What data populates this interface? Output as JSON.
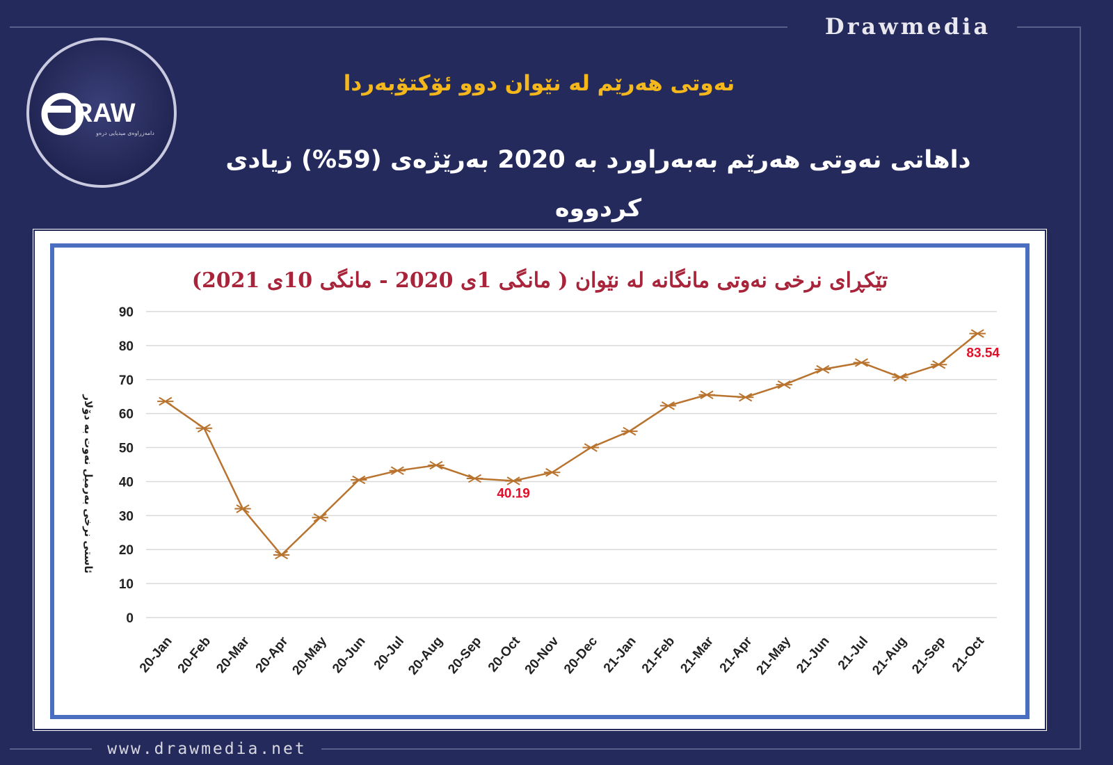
{
  "brand": {
    "top_label": "Drawmedia",
    "website": "www.drawmedia.net",
    "logo_text": "RAW",
    "logo_tagline": "دامەزراوەی میدیایی درەو"
  },
  "headline": {
    "line1": "نەوتی هەرێم لە نێوان دوو ئۆکتۆبەردا",
    "line2": "داهاتی نەوتی هەرێم بەبەراورد بە 2020 بەرێژەی (59%) زیادی کردووە"
  },
  "colors": {
    "background": "#252a5c",
    "headline_accent": "#f5b81c",
    "chart_line": "#b8732e",
    "chart_title": "#a8243a",
    "data_label": "#e0102a",
    "chart_border": "#4a6fc1"
  },
  "chart_data": {
    "type": "line",
    "title": "تێکڕای نرخی نەوتی مانگانە لە نێوان ( مانگی 1ی 2020 - مانگی 10ی 2021)",
    "ylabel": "ئاستی نرخی بەرمیل نەوت بە دۆلار",
    "xlabel": "",
    "ylim": [
      0,
      90
    ],
    "yticks": [
      "0",
      "10",
      "20",
      "30",
      "40",
      "50",
      "60",
      "70",
      "80",
      "90"
    ],
    "grid": true,
    "marker": "asterisk",
    "categories": [
      "20-Jan",
      "20-Feb",
      "20-Mar",
      "20-Apr",
      "20-May",
      "20-Jun",
      "20-Jul",
      "20-Aug",
      "20-Sep",
      "20-Oct",
      "20-Nov",
      "20-Dec",
      "21-Jan",
      "21-Feb",
      "21-Mar",
      "21-Apr",
      "21-May",
      "21-Jun",
      "21-Jul",
      "21-Aug",
      "21-Sep",
      "21-Oct"
    ],
    "values": [
      63.6,
      55.7,
      32.0,
      18.4,
      29.4,
      40.5,
      43.2,
      44.8,
      40.9,
      40.19,
      42.7,
      50.0,
      54.8,
      62.3,
      65.5,
      64.8,
      68.5,
      73.0,
      75.0,
      70.7,
      74.4,
      83.54
    ],
    "data_labels": [
      {
        "category": "20-Oct",
        "text": "40.19"
      },
      {
        "category": "21-Oct",
        "text": "83.54"
      }
    ]
  }
}
